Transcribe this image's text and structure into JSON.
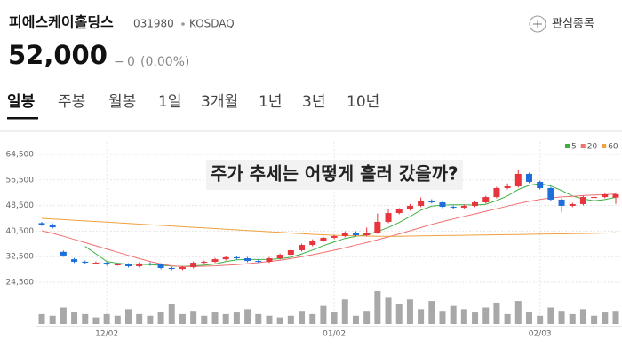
{
  "header": {
    "name": "피에스케이홀딩스",
    "code": "031980",
    "market": "KOSDAQ",
    "watch": "관심종목",
    "price": "52,000",
    "change_symbol": "−",
    "change": "0",
    "change_rate": "(0.00%)"
  },
  "tabs": [
    "일봉",
    "주봉",
    "월봉",
    "1일",
    "3개월",
    "1년",
    "3년",
    "10년"
  ],
  "chart_data": {
    "type": "candlestick",
    "overlay_title": "주가 추세는 어떻게 흘러 갔을까?",
    "categories": [
      null,
      null,
      null,
      null,
      null,
      null,
      "12/02",
      null,
      null,
      null,
      null,
      null,
      null,
      null,
      null,
      null,
      null,
      null,
      null,
      null,
      null,
      null,
      null,
      null,
      null,
      null,
      null,
      "01/02",
      null,
      null,
      null,
      null,
      null,
      null,
      null,
      null,
      null,
      null,
      null,
      null,
      null,
      null,
      null,
      null,
      null,
      null,
      "02/03",
      null,
      null,
      null,
      null,
      null,
      null,
      null
    ],
    "open": [
      43000,
      42550,
      34000,
      31700,
      30900,
      30600,
      30600,
      30050,
      30050,
      29500,
      30350,
      30050,
      28950,
      28650,
      29200,
      30600,
      30900,
      31700,
      32300,
      32000,
      31150,
      30900,
      32000,
      33100,
      34500,
      36150,
      37550,
      38400,
      38950,
      40050,
      39200,
      40050,
      43400,
      46150,
      47300,
      48400,
      50050,
      49500,
      48100,
      47850,
      48400,
      49500,
      51150,
      53950,
      54500,
      58400,
      55900,
      53950,
      50350,
      48400,
      48950,
      51150,
      51150,
      51000
    ],
    "high": [
      43400,
      42950,
      34400,
      32100,
      31300,
      31000,
      31000,
      30450,
      30450,
      30750,
      30750,
      30450,
      29350,
      29600,
      31000,
      31300,
      32100,
      32700,
      32700,
      32400,
      31550,
      32400,
      33500,
      34900,
      36550,
      37950,
      38800,
      39350,
      40450,
      40450,
      41600,
      46000,
      47500,
      47700,
      49000,
      51000,
      50450,
      49900,
      48500,
      48800,
      49900,
      51550,
      54350,
      55400,
      59500,
      58800,
      56300,
      54350,
      50750,
      49350,
      51550,
      51550,
      52400,
      52400
    ],
    "low": [
      42150,
      41300,
      32450,
      30500,
      30200,
      30200,
      29650,
      29650,
      29100,
      29100,
      29650,
      28550,
      28250,
      28250,
      28800,
      30200,
      30500,
      31300,
      31600,
      30750,
      30500,
      30500,
      31600,
      32700,
      34100,
      35750,
      37150,
      38000,
      38550,
      38800,
      38800,
      39650,
      43000,
      45750,
      46900,
      48000,
      49100,
      47700,
      47450,
      47450,
      48000,
      49100,
      50750,
      53550,
      54100,
      55500,
      53550,
      49950,
      46500,
      48000,
      48550,
      50750,
      50750,
      49000
    ],
    "close": [
      42550,
      41700,
      32850,
      30900,
      30600,
      30600,
      30050,
      30050,
      29500,
      30350,
      30050,
      28950,
      28650,
      29200,
      30600,
      30900,
      31700,
      32300,
      32000,
      31150,
      30900,
      32000,
      33100,
      34500,
      36150,
      37550,
      38400,
      38950,
      40050,
      39200,
      40050,
      43400,
      46150,
      47300,
      48400,
      50050,
      49500,
      48100,
      47850,
      48400,
      49500,
      51150,
      53950,
      54500,
      58400,
      55900,
      53950,
      50350,
      48400,
      48950,
      51150,
      51150,
      52000,
      52000
    ],
    "up_color": "#e8343c",
    "down_color": "#1e6fdc",
    "volume_color": "#a8a8a8",
    "volume": [
      12,
      10,
      20,
      14,
      12,
      8,
      12,
      10,
      18,
      12,
      10,
      14,
      24,
      12,
      16,
      10,
      14,
      12,
      14,
      18,
      12,
      10,
      8,
      10,
      16,
      12,
      22,
      14,
      30,
      10,
      16,
      40,
      32,
      24,
      30,
      18,
      28,
      16,
      22,
      18,
      14,
      20,
      26,
      12,
      28,
      14,
      10,
      20,
      16,
      12,
      18,
      10,
      14,
      16
    ],
    "series": [
      {
        "name": "5",
        "color": "#3cb043",
        "values": [
          null,
          null,
          null,
          null,
          35700,
          33400,
          31000,
          30450,
          30150,
          30100,
          30000,
          29800,
          29550,
          29450,
          29600,
          29850,
          30200,
          30950,
          31500,
          31600,
          31600,
          31650,
          31850,
          32300,
          33350,
          34550,
          35950,
          37100,
          38200,
          38850,
          39350,
          40400,
          41650,
          43200,
          45050,
          47050,
          48300,
          48650,
          48750,
          48750,
          48650,
          48900,
          50050,
          51500,
          53500,
          54800,
          55350,
          54600,
          53200,
          51500,
          50550,
          50000,
          50350,
          51050
        ]
      },
      {
        "name": "20",
        "color": "#f07070",
        "values": [
          40600,
          39800,
          38900,
          37900,
          36900,
          35900,
          34900,
          33900,
          32900,
          31900,
          31000,
          30200,
          29600,
          29400,
          29400,
          29500,
          29600,
          29800,
          30000,
          30300,
          30600,
          31000,
          31400,
          31900,
          32500,
          33100,
          33800,
          34500,
          35300,
          36100,
          36900,
          37800,
          38700,
          39600,
          40600,
          41600,
          42600,
          43500,
          44300,
          45100,
          45900,
          46700,
          47500,
          48300,
          49100,
          49800,
          50400,
          50900,
          51200,
          51400,
          51600,
          51800,
          51900,
          52100
        ]
      },
      {
        "name": "60",
        "color": "#f0a040",
        "values": [
          44500,
          44300,
          44100,
          43900,
          43700,
          43500,
          43300,
          43100,
          42900,
          42700,
          42500,
          42300,
          42100,
          41900,
          41700,
          41500,
          41300,
          41100,
          40900,
          40700,
          40500,
          40300,
          40100,
          39900,
          39700,
          39500,
          39350,
          39200,
          39100,
          39000,
          38950,
          38900,
          38900,
          38900,
          38950,
          39000,
          39050,
          39100,
          39150,
          39200,
          39250,
          39300,
          39350,
          39400,
          39450,
          39500,
          39550,
          39600,
          39650,
          39700,
          39750,
          39800,
          39900,
          40000
        ]
      }
    ],
    "ylim": [
      24500,
      64500
    ],
    "yticks": [
      {
        "value": 24500,
        "label": "24,500"
      },
      {
        "value": 32500,
        "label": "32,500"
      },
      {
        "value": 40500,
        "label": "40,500"
      },
      {
        "value": 48500,
        "label": "48,500"
      },
      {
        "value": 56500,
        "label": "56,500"
      },
      {
        "value": 64500,
        "label": "64,500"
      }
    ],
    "grid": true
  }
}
